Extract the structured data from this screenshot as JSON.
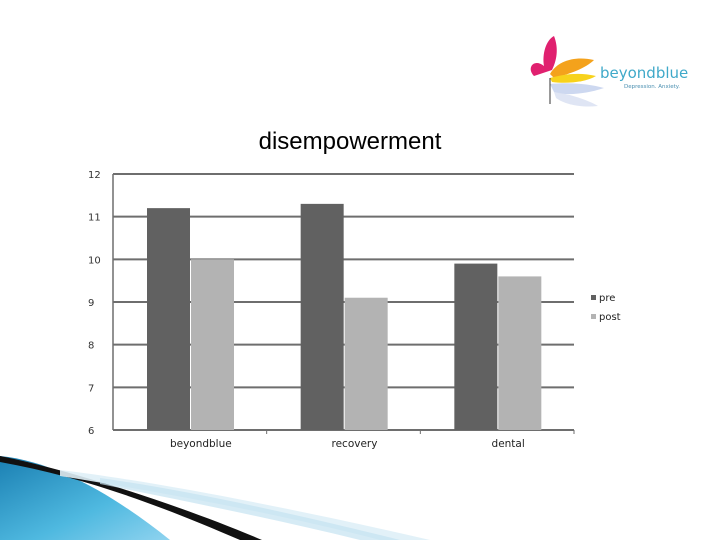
{
  "brand": {
    "name": "beyondblue",
    "tagline": "Depression. Anxiety."
  },
  "chart_data": {
    "type": "bar",
    "title": "disempowerment",
    "xlabel": "",
    "ylabel": "",
    "categories": [
      "beyondblue",
      "recovery",
      "dental"
    ],
    "series": [
      {
        "name": "pre",
        "values": [
          11.2,
          11.3,
          9.9
        ],
        "color": "#616161"
      },
      {
        "name": "post",
        "values": [
          10.0,
          9.1,
          9.6
        ],
        "color": "#b3b3b3"
      }
    ],
    "ylim": [
      6,
      12
    ],
    "yticks": [
      "12",
      "11",
      "10",
      "9",
      "8",
      "7",
      "6"
    ],
    "grid": true,
    "legend_position": "right"
  },
  "colors": {
    "grid": "#6e6e6e",
    "brand_blue": "#3fa9c9",
    "butterfly_pink": "#e0206f",
    "butterfly_orange": "#f4a21c",
    "butterfly_yellow": "#f7d21c",
    "footer_blue": "#1f9ad0"
  }
}
